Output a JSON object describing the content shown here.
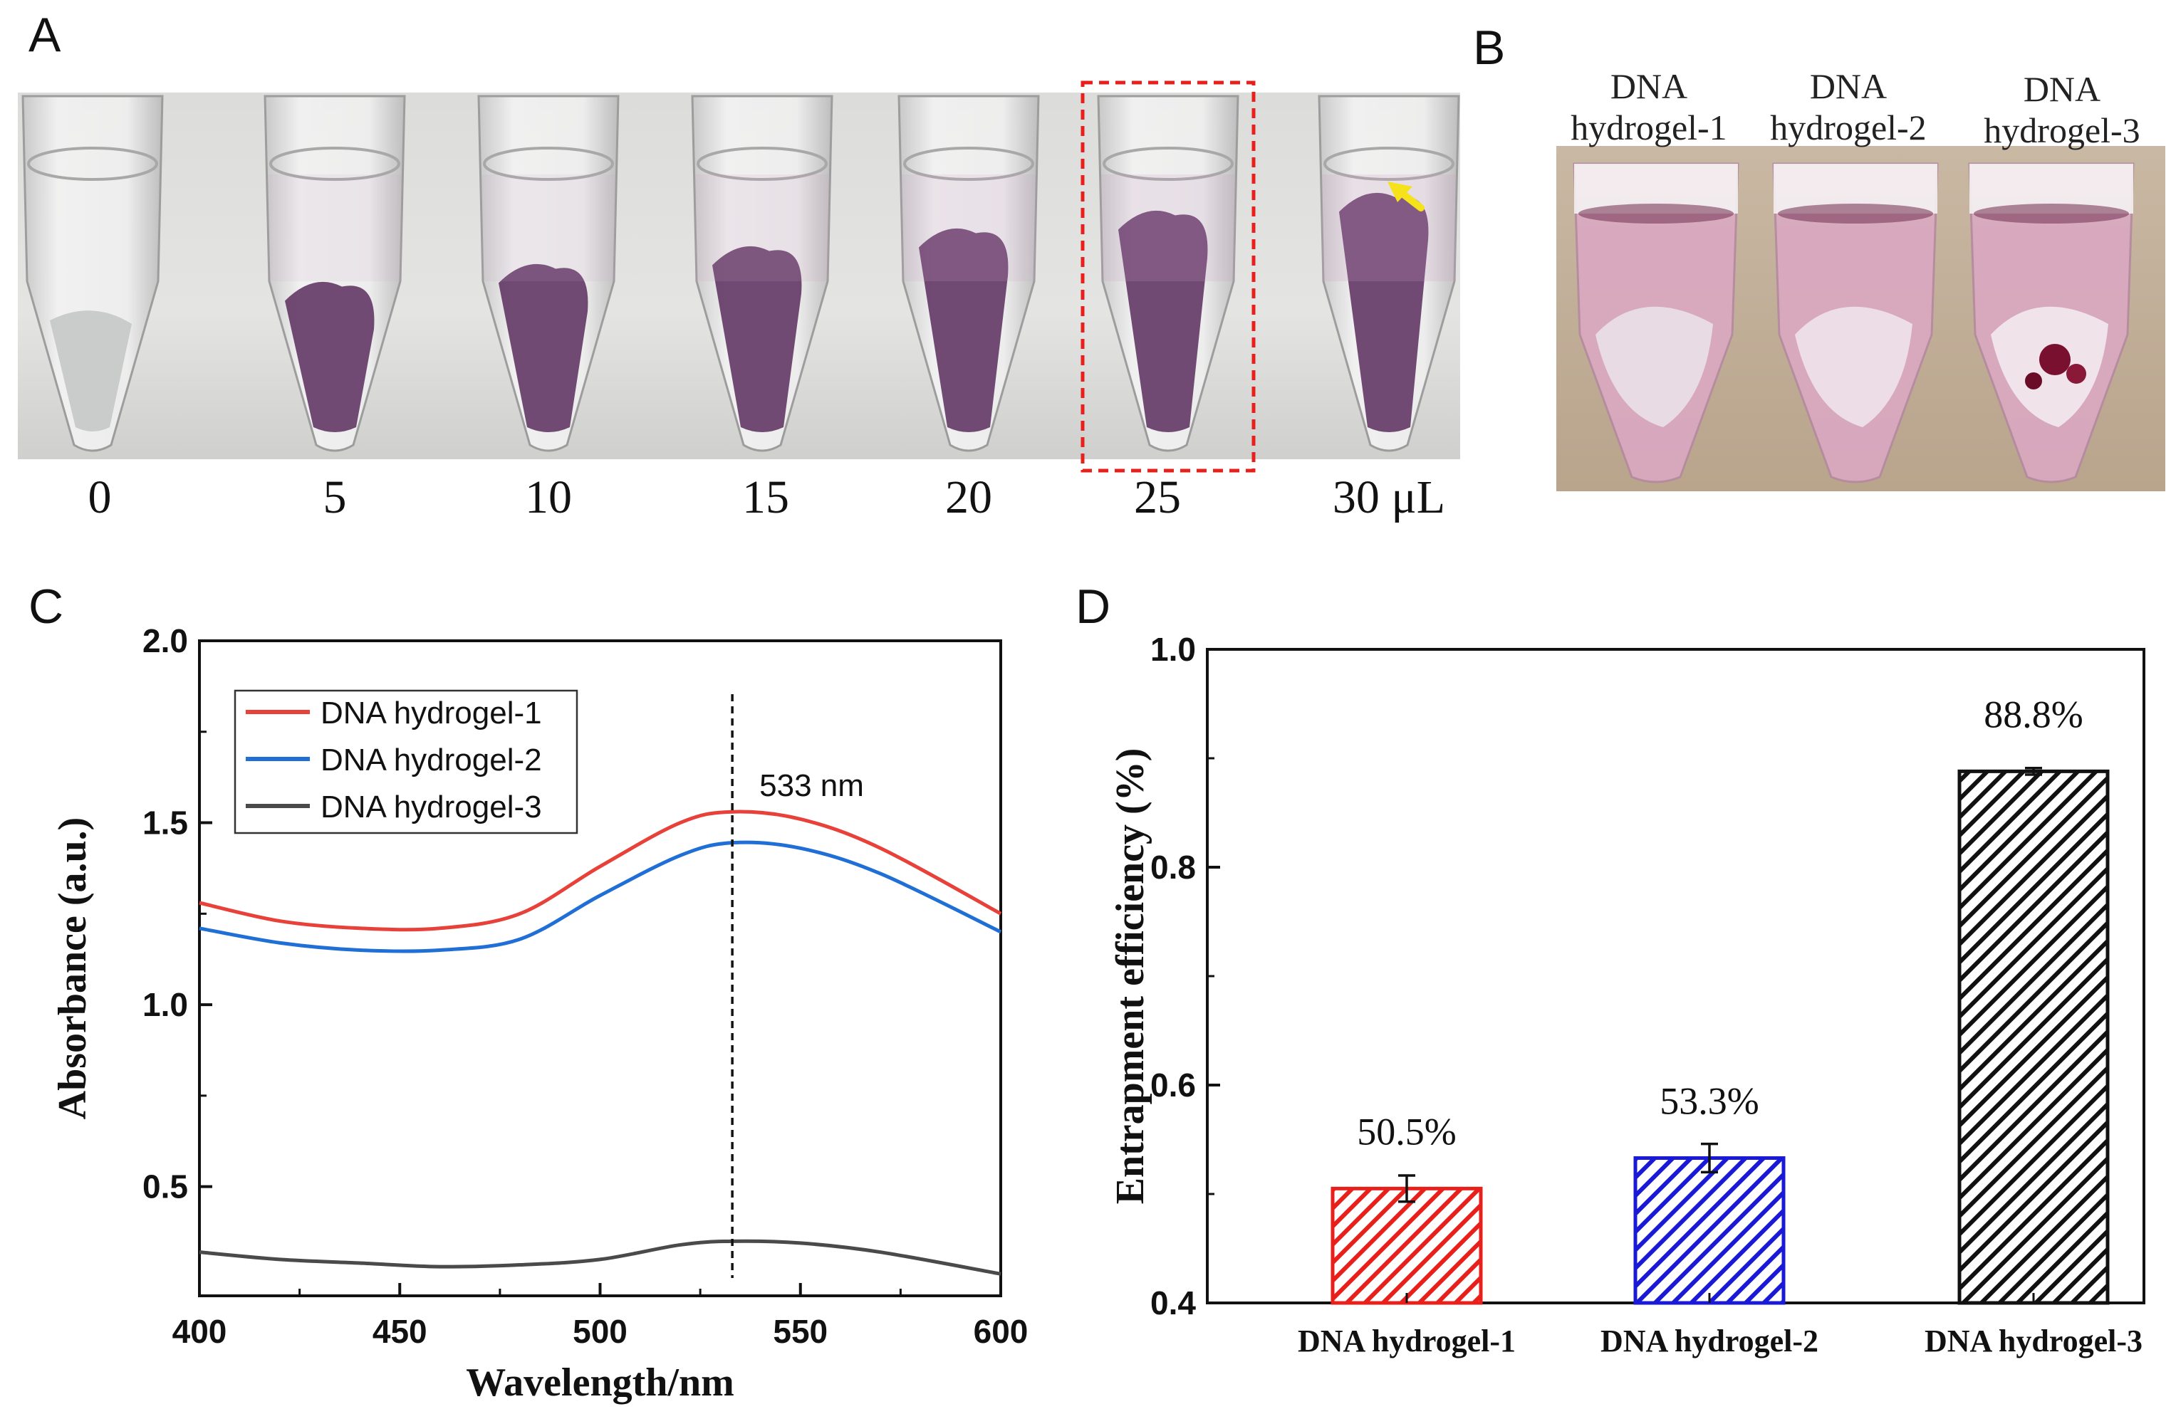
{
  "panels": {
    "a": "A",
    "b": "B",
    "c": "C",
    "d": "D"
  },
  "panel_a": {
    "volumes": [
      "0",
      "5",
      "10",
      "15",
      "20",
      "25",
      "30 μL"
    ],
    "gel_levels": [
      0,
      0.35,
      0.45,
      0.55,
      0.65,
      0.75,
      0.85
    ],
    "highlight_index": 5,
    "highlight_color": "#e8201c",
    "arrow_color": "#f5e21a"
  },
  "panel_b": {
    "tubes": [
      {
        "line1": "DNA",
        "line2": "hydrogel-1"
      },
      {
        "line1": "DNA",
        "line2": "hydrogel-2"
      },
      {
        "line1": "DNA",
        "line2": "hydrogel-3"
      }
    ]
  },
  "chart_data": [
    {
      "type": "line",
      "panel": "C",
      "xlabel": "Wavelength/nm",
      "ylabel": "Absorbance (a.u.)",
      "xlim": [
        400,
        600
      ],
      "ylim": [
        0.2,
        2.0
      ],
      "xticks": [
        "400",
        "450",
        "500",
        "550",
        "600"
      ],
      "yticks": [
        "0.5",
        "1.0",
        "1.5",
        "2.0"
      ],
      "x": [
        400,
        420,
        440,
        460,
        480,
        500,
        520,
        533,
        550,
        570,
        600
      ],
      "series": [
        {
          "name": "DNA hydrogel-1",
          "color": "#e8413a",
          "values": [
            1.28,
            1.23,
            1.21,
            1.21,
            1.25,
            1.38,
            1.5,
            1.53,
            1.51,
            1.43,
            1.25
          ]
        },
        {
          "name": "DNA hydrogel-2",
          "color": "#1f6fd6",
          "values": [
            1.21,
            1.17,
            1.15,
            1.15,
            1.18,
            1.3,
            1.41,
            1.445,
            1.43,
            1.36,
            1.2
          ]
        },
        {
          "name": "DNA hydrogel-3",
          "color": "#4a4a4a",
          "values": [
            0.32,
            0.3,
            0.29,
            0.28,
            0.285,
            0.3,
            0.34,
            0.35,
            0.345,
            0.32,
            0.26
          ]
        }
      ],
      "annotation": {
        "x": 533,
        "label": "533 nm"
      },
      "legend": "top-left"
    },
    {
      "type": "bar",
      "panel": "D",
      "ylabel": "Entrapment efficiency (%)",
      "ylim": [
        0.4,
        1.0
      ],
      "yticks": [
        "0.4",
        "0.6",
        "0.8",
        "1.0"
      ],
      "categories": [
        "DNA hydrogel-1",
        "DNA hydrogel-2",
        "DNA hydrogel-3"
      ],
      "values": [
        0.505,
        0.533,
        0.888
      ],
      "errors": [
        0.012,
        0.013,
        0.003
      ],
      "data_labels": [
        "50.5%",
        "53.3%",
        "88.8%"
      ],
      "colors": [
        "#e8201c",
        "#1a1ad6",
        "#111111"
      ]
    }
  ]
}
